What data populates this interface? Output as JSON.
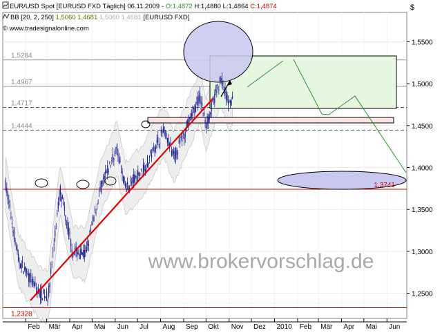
{
  "header": {
    "symbol_line": "EUR/USD Spot [EURUSD FXD  Täglich] 06.11.2009 - ",
    "open": "O:1,4872",
    "high": "H:1,4880",
    "low": "L:1,4864",
    "close": "C:1,4874",
    "bb_line_label": "BB [20, 2, 250] ",
    "bb_values": "1,5060 1,4681",
    "bb_values_faded": "1,5060 1,4681",
    "bb_symbol": "[EURUSD FXD]",
    "copyright": "© www.tradesignalonline.com"
  },
  "watermark": "www.brokervorschlag.de",
  "currency_symbol": "$",
  "colors": {
    "candle": "#1a1f8c",
    "support_line": "#e00000",
    "projection": "#2e8b2e",
    "target_box_fill": "#e6f7df",
    "ellipse_fill": "#c8c8f0",
    "band_fill": "#eeeeee"
  },
  "chart_data": {
    "type": "candlestick",
    "instrument": "EUR/USD",
    "x_labels": [
      "Feb",
      "Mär",
      "Apr",
      "Mai",
      "Jun",
      "Jul",
      "Aug",
      "Sep",
      "Okt",
      "Nov",
      "Dez",
      "2010",
      "Feb",
      "Mär",
      "Apr",
      "Mai",
      "Jun"
    ],
    "y_ticks": [
      "1,5500",
      "1,5000",
      "1,4500",
      "1,4000",
      "1,3500",
      "1,3000",
      "1,2500"
    ],
    "ylim": [
      1.22,
      1.585
    ],
    "price_levels": [
      {
        "value": 1.5284,
        "label": "1,5284"
      },
      {
        "value": 1.4967,
        "label": "1,4967"
      },
      {
        "value": 1.4717,
        "label": "1,4717"
      },
      {
        "value": 1.4444,
        "label": "1,4444"
      },
      {
        "value": 1.3741,
        "label": "1,3741"
      },
      {
        "value": 1.2328,
        "label": "1,2328"
      }
    ],
    "anchors": [
      {
        "date": "2009-01-05",
        "value": 1.38
      },
      {
        "date": "2009-01-22",
        "value": 1.29
      },
      {
        "date": "2009-02-18",
        "value": 1.251
      },
      {
        "date": "2009-03-03",
        "value": 1.2455
      },
      {
        "date": "2009-03-19",
        "value": 1.3738
      },
      {
        "date": "2009-04-05",
        "value": 1.3
      },
      {
        "date": "2009-04-22",
        "value": 1.296
      },
      {
        "date": "2009-05-12",
        "value": 1.3741
      },
      {
        "date": "2009-06-03",
        "value": 1.423
      },
      {
        "date": "2009-06-15",
        "value": 1.375
      },
      {
        "date": "2009-07-08",
        "value": 1.396
      },
      {
        "date": "2009-08-05",
        "value": 1.4444
      },
      {
        "date": "2009-08-19",
        "value": 1.4125
      },
      {
        "date": "2009-09-23",
        "value": 1.4844
      },
      {
        "date": "2009-10-01",
        "value": 1.451
      },
      {
        "date": "2009-10-21",
        "value": 1.5061
      },
      {
        "date": "2009-11-02",
        "value": 1.4717
      },
      {
        "date": "2009-11-06",
        "value": 1.4874
      }
    ]
  }
}
